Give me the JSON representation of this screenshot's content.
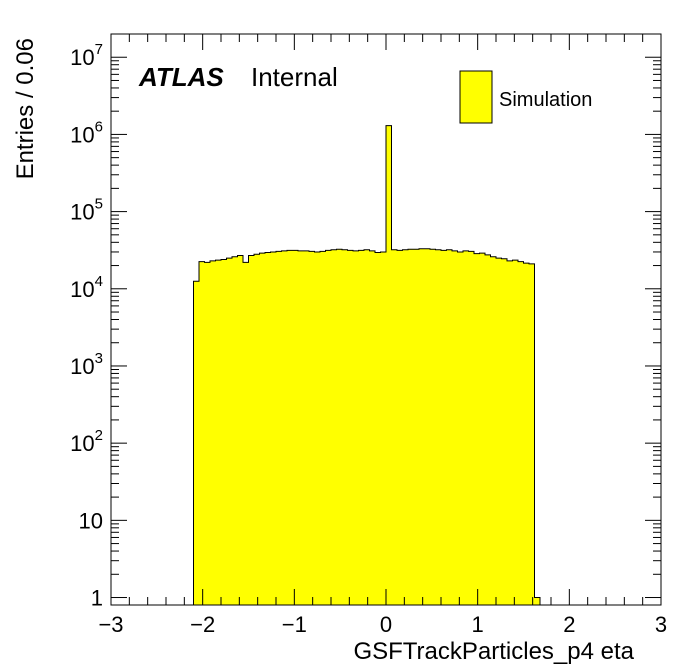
{
  "chart_data": {
    "type": "bar",
    "style": "histogram",
    "xlabel": "GSFTrackParticles_p4 eta",
    "ylabel": "Entries / 0.06",
    "xlim": [
      -3,
      3
    ],
    "ylim": [
      0.8,
      20000000
    ],
    "yscale": "log",
    "grid": false,
    "bin_width": 0.06,
    "bin_start": -3.0,
    "x_ticks": [
      {
        "value": -3,
        "label": "−3"
      },
      {
        "value": -2,
        "label": "−2"
      },
      {
        "value": -1,
        "label": "−1"
      },
      {
        "value": 0,
        "label": "0"
      },
      {
        "value": 1,
        "label": "1"
      },
      {
        "value": 2,
        "label": "2"
      },
      {
        "value": 3,
        "label": "3"
      }
    ],
    "y_ticks": [
      {
        "value": 1,
        "base": "1",
        "exp": ""
      },
      {
        "value": 10,
        "base": "10",
        "exp": ""
      },
      {
        "value": 100,
        "base": "10",
        "exp": "2"
      },
      {
        "value": 1000,
        "base": "10",
        "exp": "3"
      },
      {
        "value": 10000,
        "base": "10",
        "exp": "4"
      },
      {
        "value": 100000,
        "base": "10",
        "exp": "5"
      },
      {
        "value": 1000000,
        "base": "10",
        "exp": "6"
      },
      {
        "value": 10000000,
        "base": "10",
        "exp": "7"
      }
    ],
    "series": [
      {
        "name": "Simulation",
        "color": "#ffff00",
        "edge_color": "#000000",
        "values": [
          0,
          0,
          0,
          0,
          0,
          0,
          0,
          0,
          0,
          0,
          0,
          0,
          0,
          0,
          0,
          12500,
          22500,
          22000,
          23000,
          23500,
          24000,
          25000,
          26000,
          27000,
          22000,
          27000,
          28000,
          29000,
          29500,
          30000,
          30500,
          31000,
          31500,
          31500,
          31000,
          31000,
          30500,
          30000,
          30500,
          31500,
          32000,
          32500,
          32000,
          31500,
          31000,
          31500,
          32000,
          31000,
          29500,
          30000,
          1300000,
          32000,
          31500,
          32000,
          32500,
          32500,
          33000,
          33000,
          32500,
          32000,
          31500,
          32000,
          31000,
          30000,
          31000,
          30500,
          28500,
          29000,
          27500,
          26000,
          25000,
          24500,
          23000,
          23500,
          22500,
          21500,
          21000,
          1,
          0,
          0,
          0,
          0,
          0,
          0,
          0,
          0,
          0,
          0,
          0,
          0,
          0,
          0,
          0,
          0,
          0,
          0,
          0,
          0,
          0,
          0
        ]
      }
    ]
  },
  "annotations": {
    "atlas": "ATLAS",
    "internal": "Internal"
  },
  "legend": {
    "placement": "top-right",
    "label": "Simulation",
    "color": "#ffff00"
  }
}
